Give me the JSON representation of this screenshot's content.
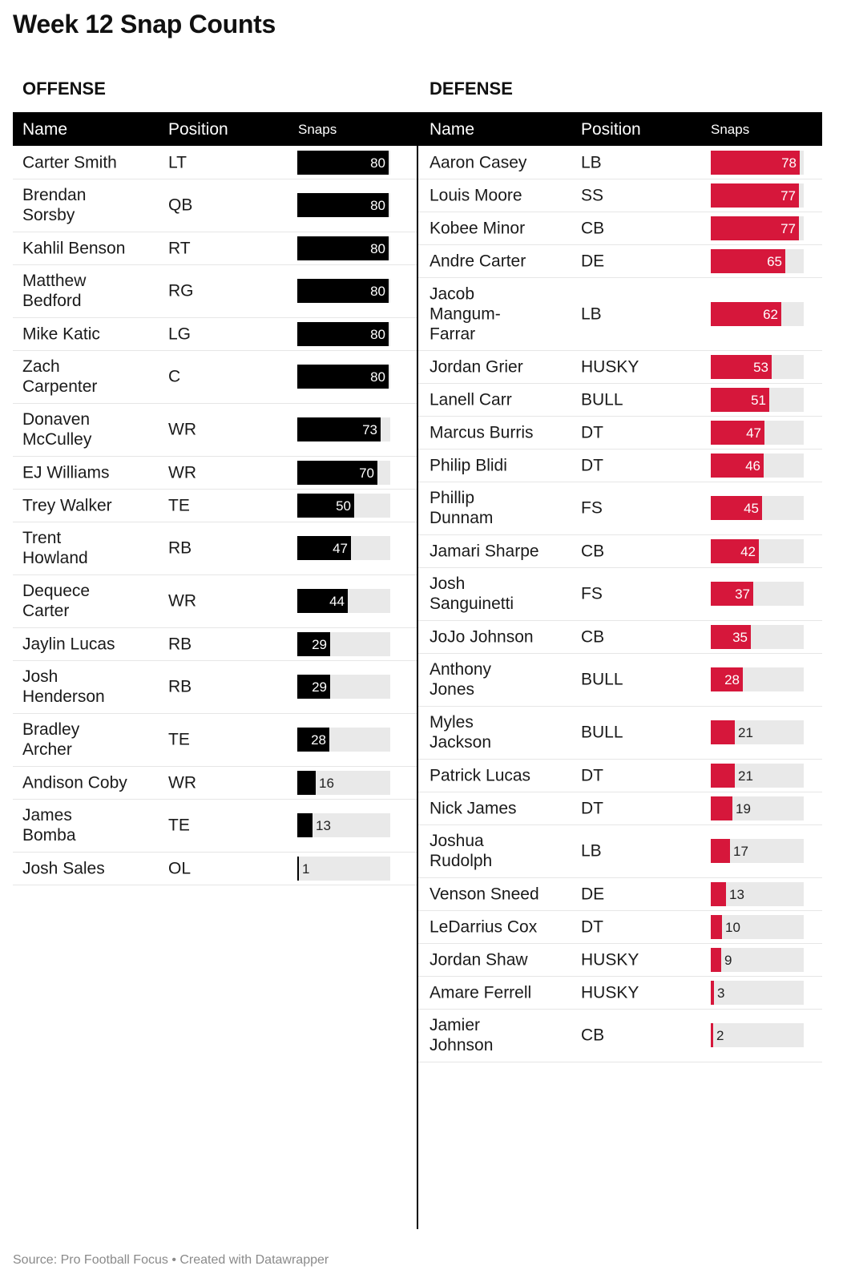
{
  "title": "Week 12 Snap Counts",
  "footer": "Source: Pro Football Focus • Created with Datawrapper",
  "colors": {
    "offense_bar": "#000000",
    "defense_bar": "#d6173b",
    "track": "#e9e9e9",
    "header_bg": "#000000"
  },
  "chart_data": {
    "type": "table",
    "value_max": 80,
    "offense": {
      "label": "OFFENSE",
      "columns": {
        "name": "Name",
        "position": "Position",
        "snaps": "Snaps"
      },
      "rows": [
        {
          "name": "Carter Smith",
          "position": "LT",
          "snaps": 80
        },
        {
          "name": "Brendan\nSorsby",
          "position": "QB",
          "snaps": 80
        },
        {
          "name": "Kahlil Benson",
          "position": "RT",
          "snaps": 80
        },
        {
          "name": "Matthew\nBedford",
          "position": "RG",
          "snaps": 80
        },
        {
          "name": "Mike Katic",
          "position": "LG",
          "snaps": 80
        },
        {
          "name": "Zach\nCarpenter",
          "position": "C",
          "snaps": 80
        },
        {
          "name": "Donaven\nMcCulley",
          "position": "WR",
          "snaps": 73
        },
        {
          "name": "EJ Williams",
          "position": "WR",
          "snaps": 70
        },
        {
          "name": "Trey Walker",
          "position": "TE",
          "snaps": 50
        },
        {
          "name": "Trent\nHowland",
          "position": "RB",
          "snaps": 47
        },
        {
          "name": "Dequece\nCarter",
          "position": "WR",
          "snaps": 44
        },
        {
          "name": "Jaylin Lucas",
          "position": "RB",
          "snaps": 29
        },
        {
          "name": "Josh\nHenderson",
          "position": "RB",
          "snaps": 29
        },
        {
          "name": "Bradley\nArcher",
          "position": "TE",
          "snaps": 28
        },
        {
          "name": "Andison Coby",
          "position": "WR",
          "snaps": 16
        },
        {
          "name": "James\nBomba",
          "position": "TE",
          "snaps": 13
        },
        {
          "name": "Josh Sales",
          "position": "OL",
          "snaps": 1
        }
      ]
    },
    "defense": {
      "label": "DEFENSE",
      "columns": {
        "name": "Name",
        "position": "Position",
        "snaps": "Snaps"
      },
      "rows": [
        {
          "name": "Aaron Casey",
          "position": "LB",
          "snaps": 78
        },
        {
          "name": "Louis Moore",
          "position": "SS",
          "snaps": 77
        },
        {
          "name": "Kobee Minor",
          "position": "CB",
          "snaps": 77
        },
        {
          "name": "Andre Carter",
          "position": "DE",
          "snaps": 65
        },
        {
          "name": "Jacob\nMangum-\nFarrar",
          "position": "LB",
          "snaps": 62
        },
        {
          "name": "Jordan Grier",
          "position": "HUSKY",
          "snaps": 53
        },
        {
          "name": "Lanell Carr",
          "position": "BULL",
          "snaps": 51
        },
        {
          "name": "Marcus Burris",
          "position": "DT",
          "snaps": 47
        },
        {
          "name": "Philip Blidi",
          "position": "DT",
          "snaps": 46
        },
        {
          "name": "Phillip\nDunnam",
          "position": "FS",
          "snaps": 45
        },
        {
          "name": "Jamari Sharpe",
          "position": "CB",
          "snaps": 42
        },
        {
          "name": "Josh\nSanguinetti",
          "position": "FS",
          "snaps": 37
        },
        {
          "name": "JoJo Johnson",
          "position": "CB",
          "snaps": 35
        },
        {
          "name": "Anthony\nJones",
          "position": "BULL",
          "snaps": 28
        },
        {
          "name": "Myles\nJackson",
          "position": "BULL",
          "snaps": 21
        },
        {
          "name": "Patrick Lucas",
          "position": "DT",
          "snaps": 21
        },
        {
          "name": "Nick James",
          "position": "DT",
          "snaps": 19
        },
        {
          "name": "Joshua\nRudolph",
          "position": "LB",
          "snaps": 17
        },
        {
          "name": "Venson Sneed",
          "position": "DE",
          "snaps": 13
        },
        {
          "name": "LeDarrius Cox",
          "position": "DT",
          "snaps": 10
        },
        {
          "name": "Jordan Shaw",
          "position": "HUSKY",
          "snaps": 9
        },
        {
          "name": "Amare Ferrell",
          "position": "HUSKY",
          "snaps": 3
        },
        {
          "name": "Jamier\nJohnson",
          "position": "CB",
          "snaps": 2
        }
      ]
    }
  }
}
